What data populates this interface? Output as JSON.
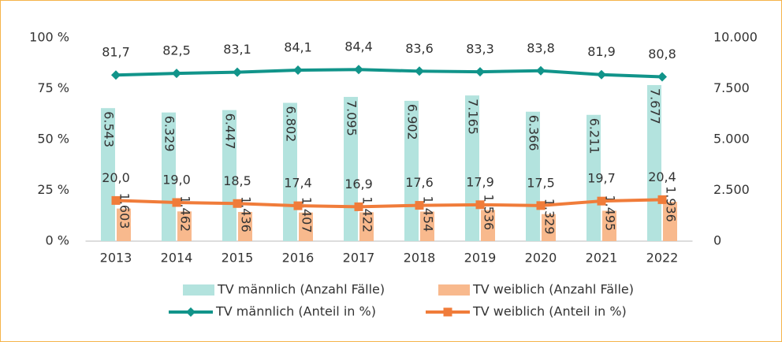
{
  "chart_data": {
    "type": "combo",
    "categories": [
      "2013",
      "2014",
      "2015",
      "2016",
      "2017",
      "2018",
      "2019",
      "2020",
      "2021",
      "2022"
    ],
    "series": [
      {
        "name": "TV männlich (Anzahl Fälle)",
        "type": "bar",
        "axis": "y2",
        "color": "#b3e3de",
        "values": [
          6543,
          6329,
          6447,
          6802,
          7095,
          6902,
          7165,
          6366,
          6211,
          7677
        ],
        "value_labels": [
          "6.543",
          "6.329",
          "6.447",
          "6.802",
          "7.095",
          "6.902",
          "7.165",
          "6.366",
          "6.211",
          "7.677"
        ]
      },
      {
        "name": "TV weiblich (Anzahl Fälle)",
        "type": "bar",
        "axis": "y2",
        "color": "#f8b98d",
        "values": [
          1603,
          1462,
          1436,
          1407,
          1422,
          1454,
          1536,
          1329,
          1495,
          1936
        ],
        "value_labels": [
          "1.603",
          "1.462",
          "1.436",
          "1.407",
          "1.422",
          "1.454",
          "1.536",
          "1.329",
          "1.495",
          "1.936"
        ]
      },
      {
        "name": "TV männlich (Anteil in %)",
        "type": "line",
        "axis": "y",
        "marker": "diamond",
        "color": "#11948a",
        "values": [
          81.7,
          82.5,
          83.1,
          84.1,
          84.4,
          83.6,
          83.3,
          83.8,
          81.9,
          80.8
        ],
        "value_labels": [
          "81,7",
          "82,5",
          "83,1",
          "84,1",
          "84,4",
          "83,6",
          "83,3",
          "83,8",
          "81,9",
          "80,8"
        ]
      },
      {
        "name": "TV weiblich (Anteil in %)",
        "type": "line",
        "axis": "y",
        "marker": "square",
        "color": "#f07c3a",
        "values": [
          20.0,
          19.0,
          18.5,
          17.4,
          16.9,
          17.6,
          17.9,
          17.5,
          19.7,
          20.4
        ],
        "value_labels": [
          "20,0",
          "19,0",
          "18,5",
          "17,4",
          "16,9",
          "17,6",
          "17,9",
          "17,5",
          "19,7",
          "20,4"
        ]
      }
    ],
    "ylim": [
      0,
      100
    ],
    "yticks": [
      {
        "value": 0,
        "label": "0 %"
      },
      {
        "value": 25,
        "label": "25 %"
      },
      {
        "value": 50,
        "label": "50 %"
      },
      {
        "value": 75,
        "label": "75 %"
      },
      {
        "value": 100,
        "label": "100 %"
      }
    ],
    "y2lim": [
      0,
      10000
    ],
    "y2ticks": [
      0,
      {
        "value": 2500,
        "label": "2.500"
      },
      {
        "value": 5000,
        "label": "5.000"
      },
      {
        "value": 7500,
        "label": "7.500"
      },
      {
        "value": 10000,
        "label": "10.000"
      }
    ],
    "grid": false
  }
}
